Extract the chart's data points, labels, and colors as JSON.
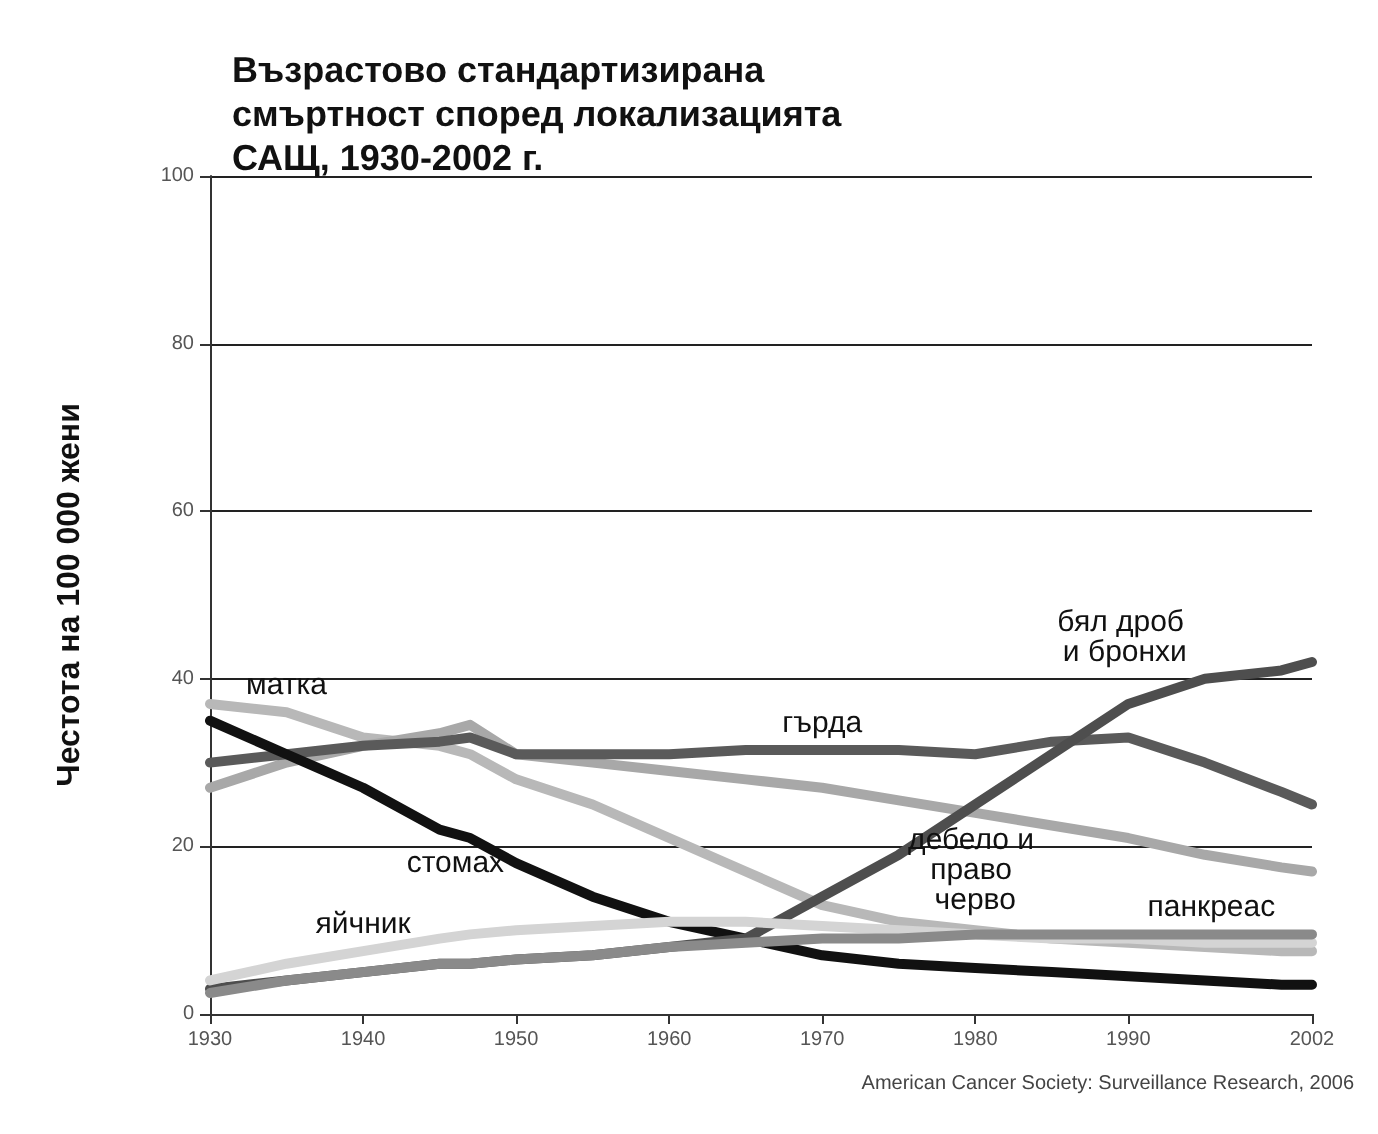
{
  "chart_data": {
    "type": "line",
    "title": "Възрастово стандартизирана смъртност според локализацията САЩ, 1930-2002 г.",
    "ylabel": "Честота на 100 000 жени",
    "annotations": [
      "American Cancer Society: Surveillance Research, 2006"
    ],
    "x": [
      1930,
      1935,
      1940,
      1945,
      1947,
      1950,
      1955,
      1960,
      1965,
      1970,
      1975,
      1980,
      1985,
      1990,
      1995,
      2000,
      2002
    ],
    "series": [
      {
        "name": "матка",
        "color": "#b8b8b8",
        "values": [
          37,
          36,
          33,
          32,
          31,
          28,
          25,
          21,
          17,
          13,
          11,
          10,
          9,
          8.5,
          8,
          7.5,
          7.5
        ]
      },
      {
        "name": "дебело и право черво",
        "color": "#a8a8a8",
        "values": [
          27,
          30,
          32,
          33.5,
          34.5,
          31,
          30,
          29,
          28,
          27,
          25.5,
          24,
          22.5,
          21,
          19,
          17.5,
          17
        ]
      },
      {
        "name": "гърда",
        "color": "#5a5a5a",
        "values": [
          30,
          31,
          32,
          32.5,
          33,
          31,
          31,
          31,
          31.5,
          31.5,
          31.5,
          31,
          32.5,
          33,
          30,
          26.5,
          25
        ]
      },
      {
        "name": "стомах",
        "color": "#111111",
        "values": [
          35,
          31,
          27,
          22,
          21,
          18,
          14,
          11,
          9,
          7,
          6,
          5.5,
          5,
          4.5,
          4,
          3.5,
          3.5
        ]
      },
      {
        "name": "бял дроб и бронхи",
        "color": "#4e4e4e",
        "values": [
          3,
          4,
          5,
          6,
          6,
          6.5,
          7,
          8,
          9,
          14,
          19,
          25,
          31,
          37,
          40,
          41,
          42
        ]
      },
      {
        "name": "яйчник",
        "color": "#d4d4d4",
        "values": [
          4,
          6,
          7.5,
          9,
          9.5,
          10,
          10.5,
          11,
          11,
          10.5,
          10,
          9.5,
          9,
          9,
          8.5,
          8.5,
          8.5
        ]
      },
      {
        "name": "панкреас",
        "color": "#8a8a8a",
        "values": [
          2.5,
          4,
          5,
          6,
          6,
          6.5,
          7,
          8,
          8.5,
          9,
          9,
          9.5,
          9.5,
          9.5,
          9.5,
          9.5,
          9.5
        ]
      }
    ],
    "xlim": [
      1930,
      2002
    ],
    "xticks": [
      1930,
      1940,
      1950,
      1960,
      1970,
      1980,
      1990,
      2002
    ],
    "ylim": [
      0,
      100
    ],
    "yticks": [
      0,
      20,
      40,
      60,
      80,
      100
    ],
    "grid": "y",
    "marker": "none",
    "line_style": "solid"
  }
}
